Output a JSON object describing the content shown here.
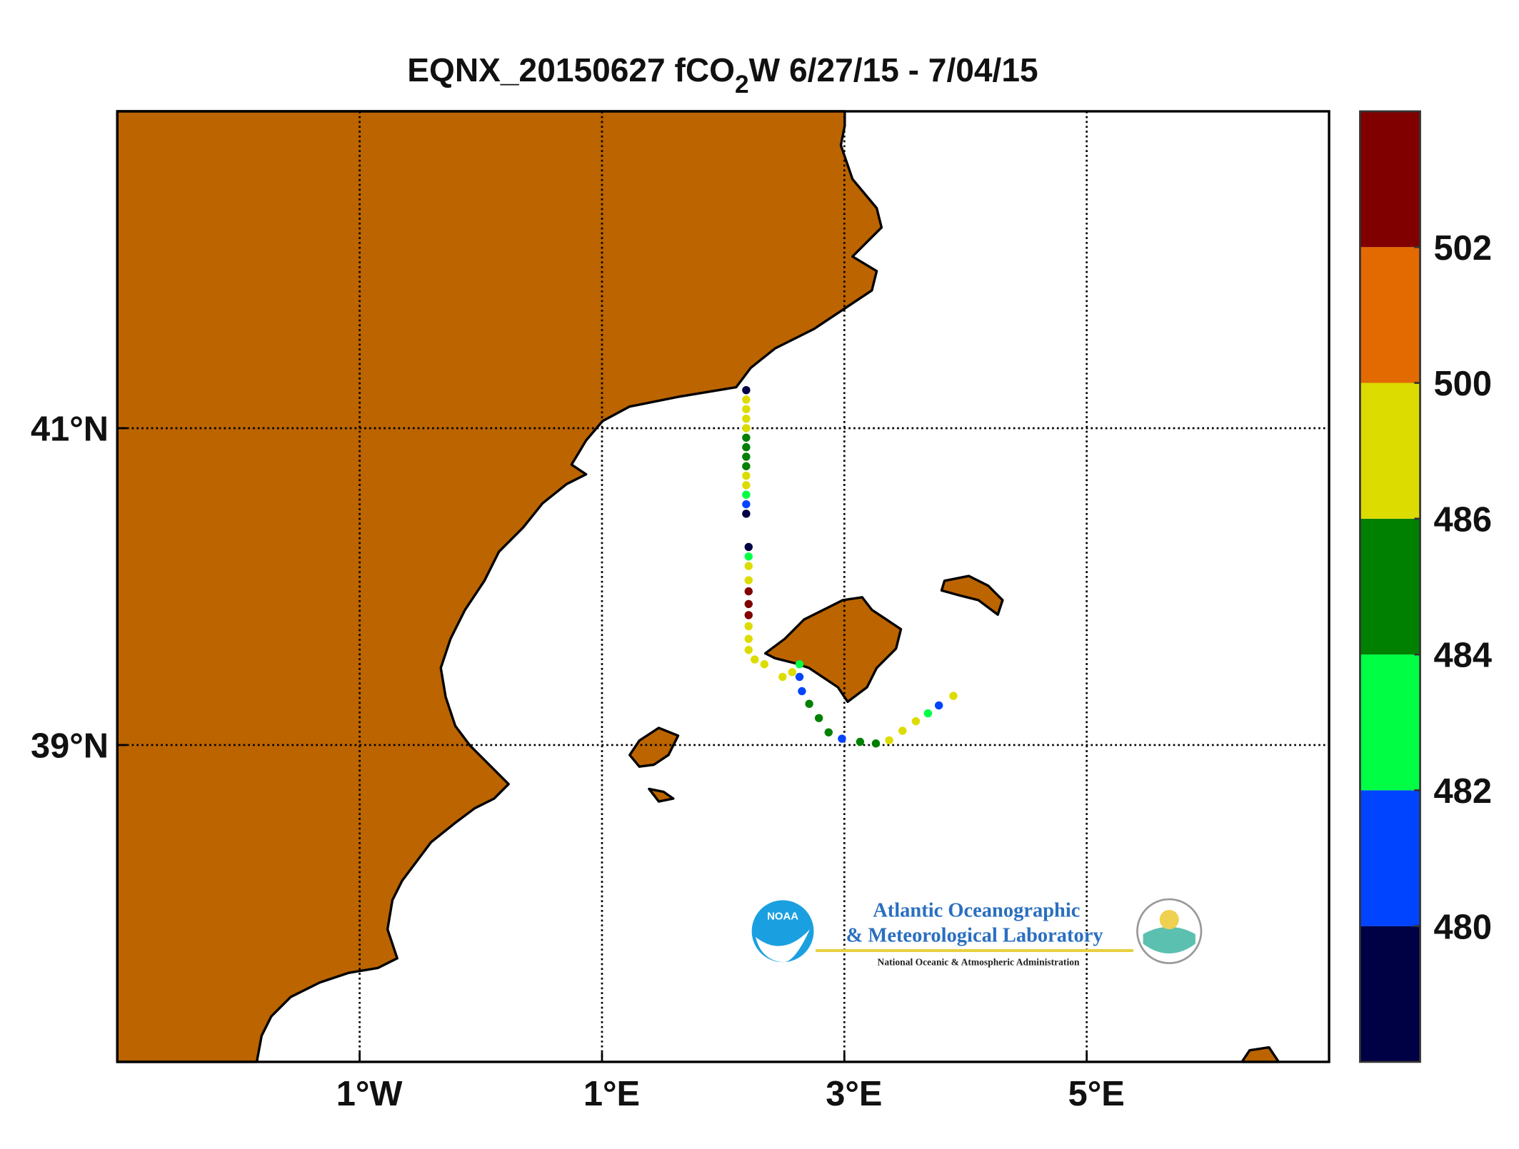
{
  "chart_data": {
    "type": "scatter",
    "title_parts": [
      "EQNX_20150627 fCO",
      "2",
      "W 6/27/15 - 7/04/15"
    ],
    "xlim": [
      -3,
      7
    ],
    "ylim": [
      37,
      43
    ],
    "xticks": [
      {
        "value": -1,
        "label": "1°W"
      },
      {
        "value": 1,
        "label": "1°E"
      },
      {
        "value": 3,
        "label": "3°E"
      },
      {
        "value": 5,
        "label": "5°E"
      }
    ],
    "yticks": [
      {
        "value": 39,
        "label": "39°N"
      },
      {
        "value": 41,
        "label": "41°N"
      }
    ],
    "grid": true,
    "land_color": "#bb6400",
    "x": [
      2.19,
      2.19,
      2.19,
      2.19,
      2.19,
      2.19,
      2.19,
      2.19,
      2.19,
      2.19,
      2.19,
      2.19,
      2.19,
      2.19,
      2.21,
      2.21,
      2.21,
      2.21,
      2.21,
      2.21,
      2.21,
      2.21,
      2.21,
      2.21,
      2.26,
      2.34,
      2.49,
      2.57,
      2.63,
      2.63,
      2.65,
      2.71,
      2.79,
      2.87,
      2.98,
      3.13,
      3.26,
      3.37,
      3.48,
      3.59,
      3.69,
      3.78,
      3.9
    ],
    "y": [
      41.24,
      41.18,
      41.12,
      41.06,
      41.0,
      40.94,
      40.88,
      40.82,
      40.76,
      40.7,
      40.64,
      40.58,
      40.52,
      40.46,
      40.25,
      40.19,
      40.13,
      40.04,
      39.97,
      39.89,
      39.82,
      39.75,
      39.67,
      39.6,
      39.54,
      39.51,
      39.43,
      39.46,
      39.51,
      39.43,
      39.34,
      39.26,
      39.17,
      39.08,
      39.04,
      39.02,
      39.01,
      39.03,
      39.09,
      39.15,
      39.2,
      39.25,
      39.31
    ],
    "values": [
      479,
      490,
      490,
      490,
      490,
      485,
      485,
      485,
      485,
      490,
      490,
      483,
      481,
      479,
      479,
      483,
      490,
      490,
      503,
      503,
      503,
      490,
      490,
      490,
      490,
      490,
      490,
      490,
      483,
      481,
      481,
      485,
      485,
      485,
      481,
      485,
      485,
      490,
      490,
      490,
      483,
      481,
      490
    ],
    "colorbar": {
      "colors": [
        "#000044",
        "#0044ff",
        "#00ff44",
        "#008000",
        "#dcdc00",
        "#e26a00",
        "#800000"
      ],
      "ticks": [
        480,
        482,
        484,
        486,
        500,
        502
      ]
    }
  },
  "logo": {
    "badge": "NOAA",
    "line1": "Atlantic Oceanographic",
    "line2": "& Meteorological Laboratory",
    "line3": "National Oceanic & Atmospheric Administration"
  }
}
